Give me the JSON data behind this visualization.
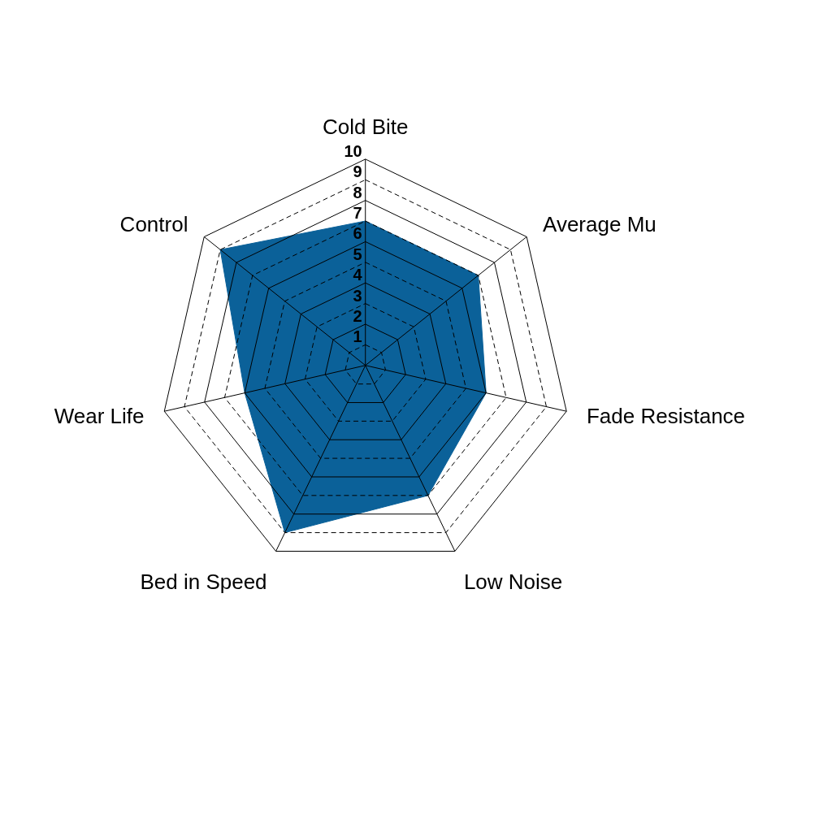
{
  "chart_data": {
    "type": "radar",
    "categories": [
      "Cold Bite",
      "Average Mu",
      "Fade Resistance",
      "Low Noise",
      "Bed in Speed",
      "Wear Life",
      "Control"
    ],
    "series": [
      {
        "color": "#0b6199",
        "values": [
          7,
          7,
          6,
          7,
          9,
          6,
          9
        ]
      }
    ],
    "ylim": [
      0,
      10
    ],
    "yticks": [
      1,
      2,
      3,
      4,
      5,
      6,
      7,
      8,
      9,
      10
    ],
    "grid": true
  }
}
